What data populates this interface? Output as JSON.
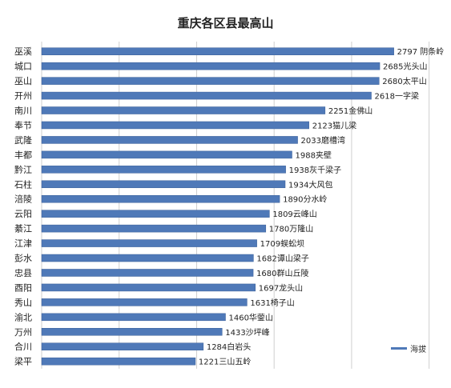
{
  "chart_data": {
    "type": "bar",
    "orientation": "horizontal",
    "title": "重庆各区县最高山",
    "categories": [
      "巫溪",
      "城口",
      "巫山",
      "开州",
      "南川",
      "奉节",
      "武隆",
      "丰都",
      "黔江",
      "石柱",
      "涪陵",
      "云阳",
      "綦江",
      "江津",
      "彭水",
      "忠县",
      "酉阳",
      "秀山",
      "渝北",
      "万州",
      "合川",
      "梁平"
    ],
    "values": [
      2797,
      2685,
      2680,
      2618,
      2251,
      2123,
      2033,
      1988,
      1938,
      1934,
      1890,
      1809,
      1780,
      1709,
      1682,
      1680,
      1697,
      1631,
      1460,
      1433,
      1284,
      1221
    ],
    "value_labels": [
      "2797 阴条岭",
      "2685光头山",
      "2680太平山",
      "2618一字梁",
      "2251金佛山",
      "2123猫儿梁",
      "2033磨槽湾",
      "1988夹壁",
      "1938灰千梁子",
      "1934大风包",
      "1890分水岭",
      "1809云峰山",
      "1780万隆山",
      "1709蜈蚣坝",
      "1682谭山梁子",
      "1680群山丘陵",
      "1697龙头山",
      "1631椅子山",
      "1460华蓥山",
      "1433沙坪峰",
      "1284白岩头",
      "1221三山五岭"
    ],
    "xlim": [
      0,
      3200
    ],
    "grid": "vertical",
    "legend": {
      "position": "bottom-right",
      "label": "海拔"
    },
    "colors": {
      "bar": "#4f79b8",
      "bar_edge": "#3a5f98",
      "grid": "#cfcfcf"
    }
  }
}
